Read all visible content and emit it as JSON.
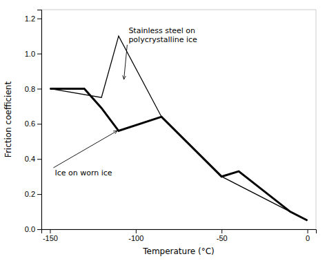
{
  "chart_data": {
    "type": "line",
    "xlabel": "Temperature (°C)",
    "ylabel": "Friction coefficient",
    "series": [
      {
        "x": [
          -150,
          -120,
          -110,
          -85,
          -50,
          -10,
          0
        ],
        "values": [
          0.8,
          0.75,
          1.1,
          0.64,
          0.3,
          0.1,
          0.05
        ],
        "color": "#000000",
        "line_style": "thin"
      },
      {
        "x": [
          -150,
          -130,
          -120,
          -110,
          -85,
          -50,
          -40,
          -10,
          0
        ],
        "values": [
          0.8,
          0.8,
          0.69,
          0.56,
          0.64,
          0.3,
          0.33,
          0.1,
          0.05
        ],
        "color": "#000000",
        "line_style": "thick"
      }
    ],
    "annotations": [
      {
        "text": "Stainless steel on\npolycrystalline ice",
        "xy": [
          -107,
          0.845
        ],
        "xytext": [
          -105,
          1.05
        ]
      },
      {
        "text": "Ice on worn ice",
        "xy": [
          -110,
          0.565
        ],
        "xytext": [
          -148,
          0.35
        ]
      }
    ],
    "xlim": [
      -155,
      5
    ],
    "ylim": [
      0.0,
      1.25
    ],
    "xticks": [
      -150,
      -100,
      -50,
      0
    ],
    "yticks": [
      {
        "value": 0.0,
        "label": "0.0"
      },
      0.2,
      0.4,
      0.6,
      0.8,
      {
        "value": 1.0,
        "label": "1.0"
      },
      1.2
    ]
  }
}
